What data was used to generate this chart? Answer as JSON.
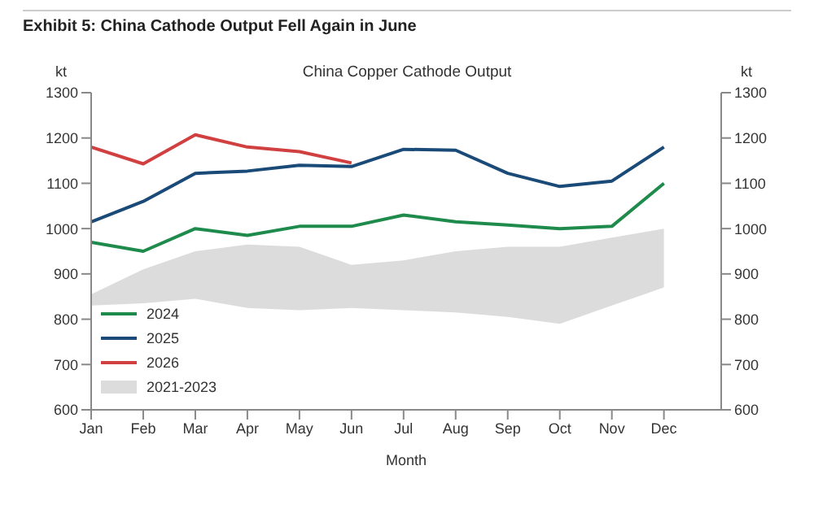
{
  "chart_data": {
    "type": "line",
    "title": "Exhibit 5: China Cathode Output Fell Again in June",
    "subtitle": "China Copper Cathode Output",
    "xlabel": "Month",
    "ylabel": "kt",
    "y2label": "kt",
    "categories": [
      "Jan",
      "Feb",
      "Mar",
      "Apr",
      "May",
      "Jun",
      "Jul",
      "Aug",
      "Sep",
      "Oct",
      "Nov",
      "Dec"
    ],
    "series": [
      {
        "name": "2024",
        "color": "#1e8a4c",
        "values": [
          970,
          950,
          1000,
          985,
          1005,
          1005,
          1030,
          1015,
          1008,
          1000,
          1005,
          1100
        ]
      },
      {
        "name": "2025",
        "color": "#1a4a78",
        "values": [
          1015,
          1060,
          1122,
          1127,
          1140,
          1137,
          1175,
          1173,
          1122,
          1093,
          1105,
          1180
        ]
      },
      {
        "name": "2026",
        "color": "#d04040",
        "values": [
          1180,
          1143,
          1207,
          1180,
          1170,
          1145,
          null,
          null,
          null,
          null,
          null,
          null
        ]
      },
      {
        "name": "2021-2023",
        "type": "area",
        "color": "#dcdcdc",
        "values": [
          null,
          null,
          null,
          null,
          null,
          null,
          null,
          null,
          null,
          null,
          null,
          null
        ],
        "lower": [
          830,
          835,
          845,
          825,
          820,
          825,
          820,
          815,
          805,
          790,
          830,
          870
        ],
        "upper": [
          855,
          910,
          950,
          965,
          960,
          920,
          930,
          950,
          960,
          960,
          980,
          1000
        ]
      }
    ],
    "ylim": [
      600,
      1300
    ],
    "yticks": [
      600,
      700,
      800,
      900,
      1000,
      1100,
      1200,
      1300
    ],
    "y2lim": [
      600,
      1300
    ],
    "y2ticks": [
      600,
      700,
      800,
      900,
      1000,
      1100,
      1200,
      1300
    ],
    "grid": false,
    "legend": "bottom left",
    "marker": "none",
    "line_style": "solid"
  }
}
